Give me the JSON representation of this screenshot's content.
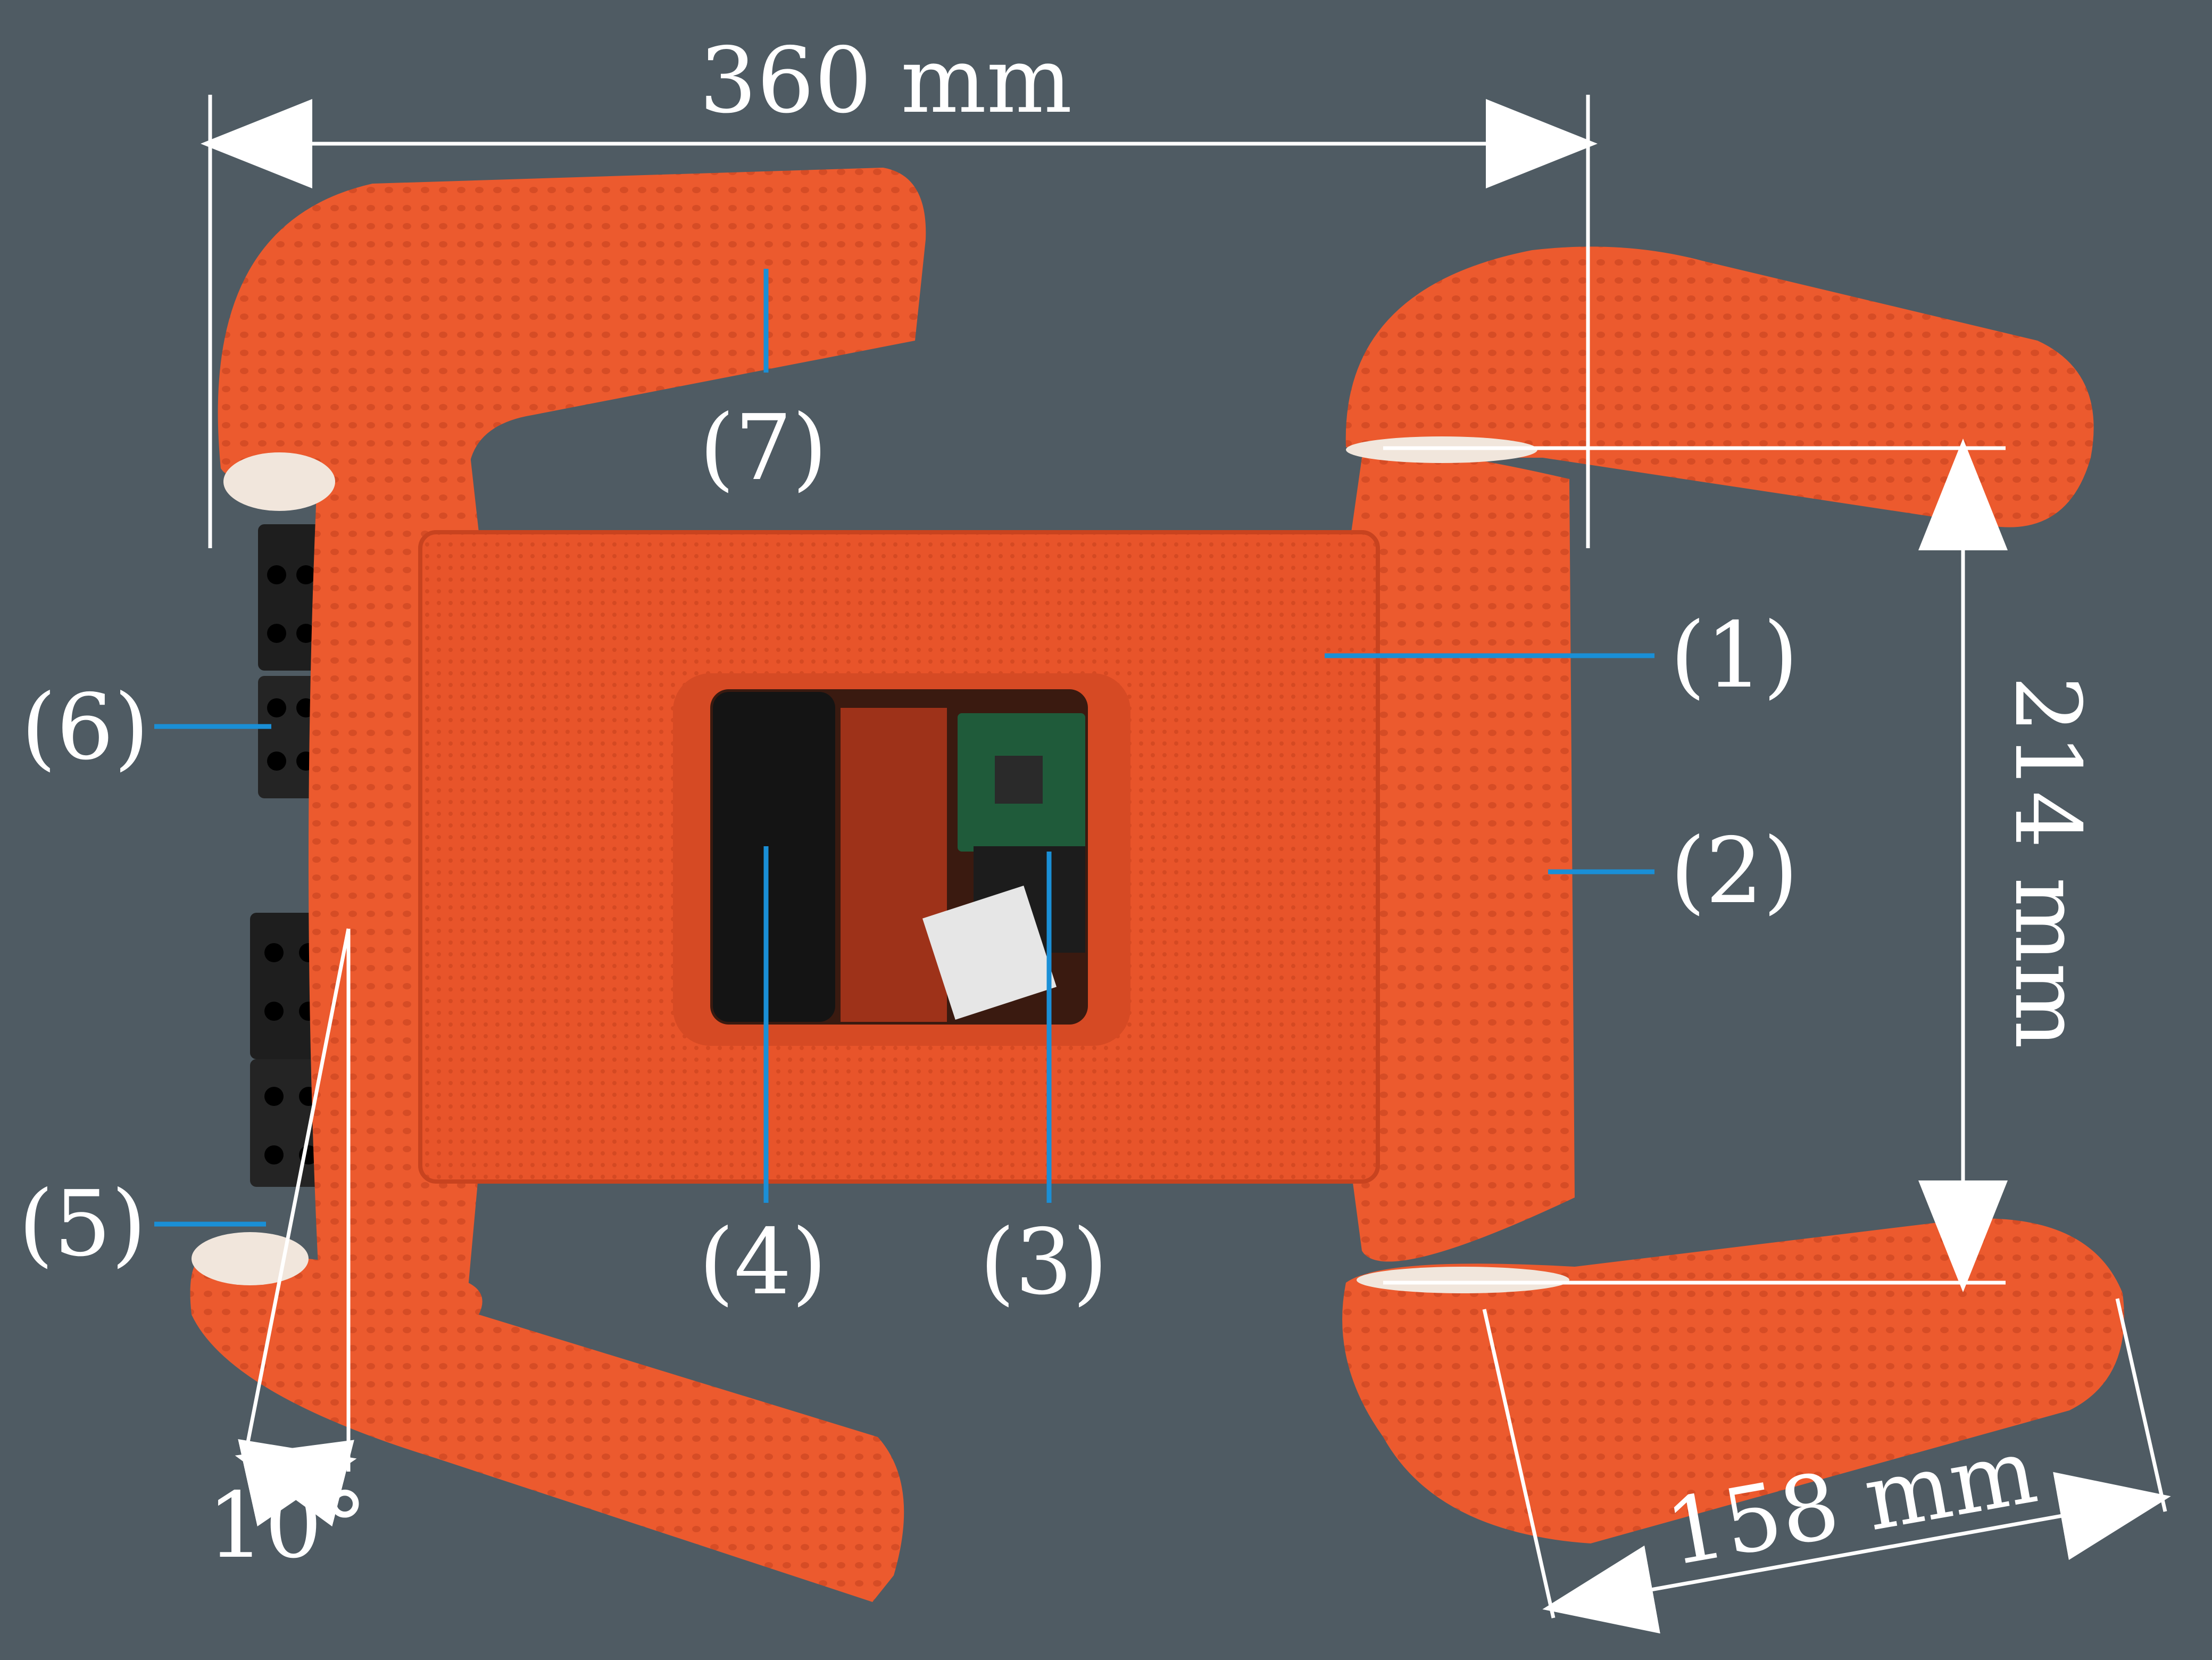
{
  "photo": {
    "subject": "orange 3D-printed quadruped robot, top view",
    "colors": {
      "background": "#4f5b63",
      "body": "#e8542a",
      "body_dark": "#c8431f",
      "leg": "#ec5a2e",
      "callout_line": "#1a8fd6",
      "dimension_line": "#ffffff",
      "servo": "#1e1e1e"
    }
  },
  "dimensions": {
    "length": "360 mm",
    "width": "214 mm",
    "leg": "158 mm",
    "angle": "10°"
  },
  "callouts": [
    "(1)",
    "(2)",
    "(3)",
    "(4)",
    "(5)",
    "(6)",
    "(7)"
  ]
}
